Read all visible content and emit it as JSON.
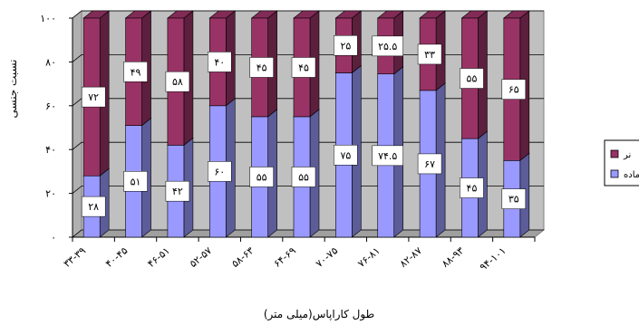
{
  "chart_data": {
    "type": "bar",
    "stacked": true,
    "percent_stacked": true,
    "three_d": true,
    "ylabel": "نسبت جنسی",
    "xlabel": "طول کاراپاس(میلی متر)",
    "ylim": [
      0,
      100
    ],
    "y_ticks": [
      "۰",
      "۲۰",
      "۴۰",
      "۶۰",
      "۸۰",
      "۱۰۰"
    ],
    "grid": true,
    "legend_position": "right",
    "categories": [
      "۳۳-۳۹",
      "۴۰-۴۵",
      "۴۶-۵۱",
      "۵۲-۵۷",
      "۵۸-۶۳",
      "۶۴-۶۹",
      "۷۰-۷۵",
      "۷۶-۸۱",
      "۸۲-۸۷",
      "۸۸-۹۳",
      "۹۴-۱۰۱"
    ],
    "series": [
      {
        "name": "ماده",
        "color": "#9999ff",
        "values": [
          28,
          51,
          42,
          60,
          55,
          55,
          75,
          74.5,
          67,
          45,
          35
        ],
        "labels": [
          "۲۸",
          "۵۱",
          "۴۲",
          "۶۰",
          "۵۵",
          "۵۵",
          "۷۵",
          "۷۴.۵",
          "۶۷",
          "۴۵",
          "۳۵"
        ]
      },
      {
        "name": "نر",
        "color": "#993366",
        "values": [
          72,
          49,
          58,
          40,
          45,
          45,
          25,
          25.5,
          33,
          55,
          65
        ],
        "labels": [
          "۷۲",
          "۴۹",
          "۵۸",
          "۴۰",
          "۴۵",
          "۴۵",
          "۲۵",
          "۲۵.۵",
          "۳۳",
          "۵۵",
          "۶۵"
        ]
      }
    ]
  },
  "legend": {
    "male": "نر",
    "female": "ماده"
  }
}
